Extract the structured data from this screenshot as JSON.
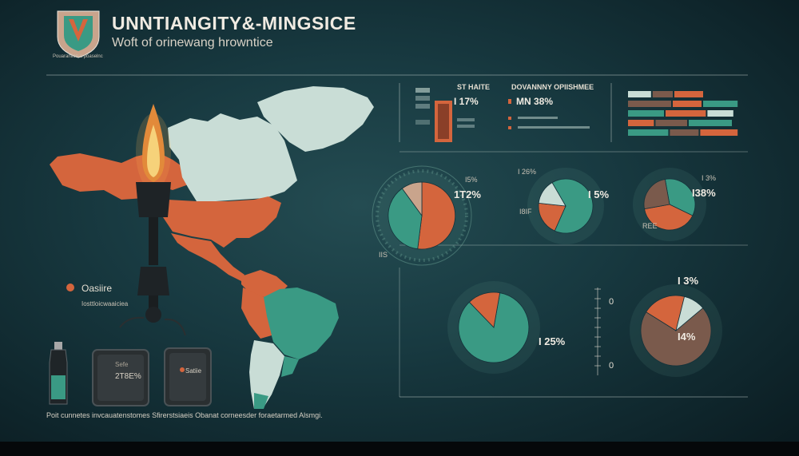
{
  "header": {
    "logo_icon": "shield-icon",
    "logo_caption": "Pouaranlion a poaselnc",
    "title": "UNNTIANGITY&-MINGSICE",
    "subtitle": "Woft of orinewang hrowntice"
  },
  "map_panel": {
    "legend_label": "Oasiire",
    "legend_sub": "Iosttloicwaaiciea",
    "legend_color": "#d4653d",
    "canister_left_label": "Sefe",
    "canister_left_value": "2T8E%",
    "canister_right_label": "Satiie",
    "torch_icon": "torch-flame-icon",
    "bottle_icon": "bottle-icon",
    "canister_icon": "canister-icon"
  },
  "top_row": {
    "stat_block": {
      "title": "ST HAITE",
      "value": "I 17%"
    },
    "doc_block": {
      "title": "DOVANNNY OPIISHMEE",
      "value": "MN 38%"
    }
  },
  "gauges": [
    {
      "title": "I5%",
      "value": "1T2%",
      "footer": "IIS"
    },
    {
      "title": "I 26%",
      "value": "I 5%",
      "footer": "I8IF"
    },
    {
      "title": "I 3%",
      "value": "I38%",
      "footer": "REE"
    }
  ],
  "bottom_row": {
    "left_value": "I 25%",
    "right_top": "I 3%",
    "right_mid": "I4%",
    "axis_zero_a": "0",
    "axis_zero_b": "0"
  },
  "footer": "Poit cunnetes invcauatenstomes Sfirerstsiaeis Obanat corneesder foraetarmed Alsmgi.",
  "colors": {
    "orange": "#d4653d",
    "teal": "#3a9a84",
    "mint": "#c9ddd6",
    "tan": "#c9a48c",
    "brown": "#7a5a4c",
    "dark_teal": "#0f2a30"
  },
  "chart_data": [
    {
      "type": "pie",
      "labels": [
        "Orange",
        "Teal",
        "Tan"
      ],
      "values": [
        52,
        38,
        10
      ],
      "title": ""
    },
    {
      "type": "pie",
      "labels": [
        "Teal",
        "Orange",
        "Mint"
      ],
      "values": [
        65,
        20,
        15
      ],
      "title": ""
    },
    {
      "type": "pie",
      "labels": [
        "Teal",
        "Orange",
        "Brown"
      ],
      "values": [
        35,
        40,
        25
      ],
      "title": ""
    },
    {
      "type": "pie",
      "labels": [
        "Teal",
        "Orange"
      ],
      "values": [
        85,
        15
      ],
      "title": ""
    },
    {
      "type": "pie",
      "labels": [
        "Brown",
        "Orange",
        "Mint"
      ],
      "values": [
        70,
        20,
        10
      ],
      "title": ""
    },
    {
      "type": "bar",
      "title": "",
      "categories": [
        "r1",
        "r2",
        "r3",
        "r4",
        "r5"
      ],
      "series": [
        {
          "values": [
            16,
            30,
            25,
            18,
            28
          ]
        },
        {
          "values": [
            14,
            20,
            28,
            22,
            20
          ]
        },
        {
          "values": [
            20,
            24,
            18,
            30,
            26
          ]
        }
      ]
    }
  ]
}
